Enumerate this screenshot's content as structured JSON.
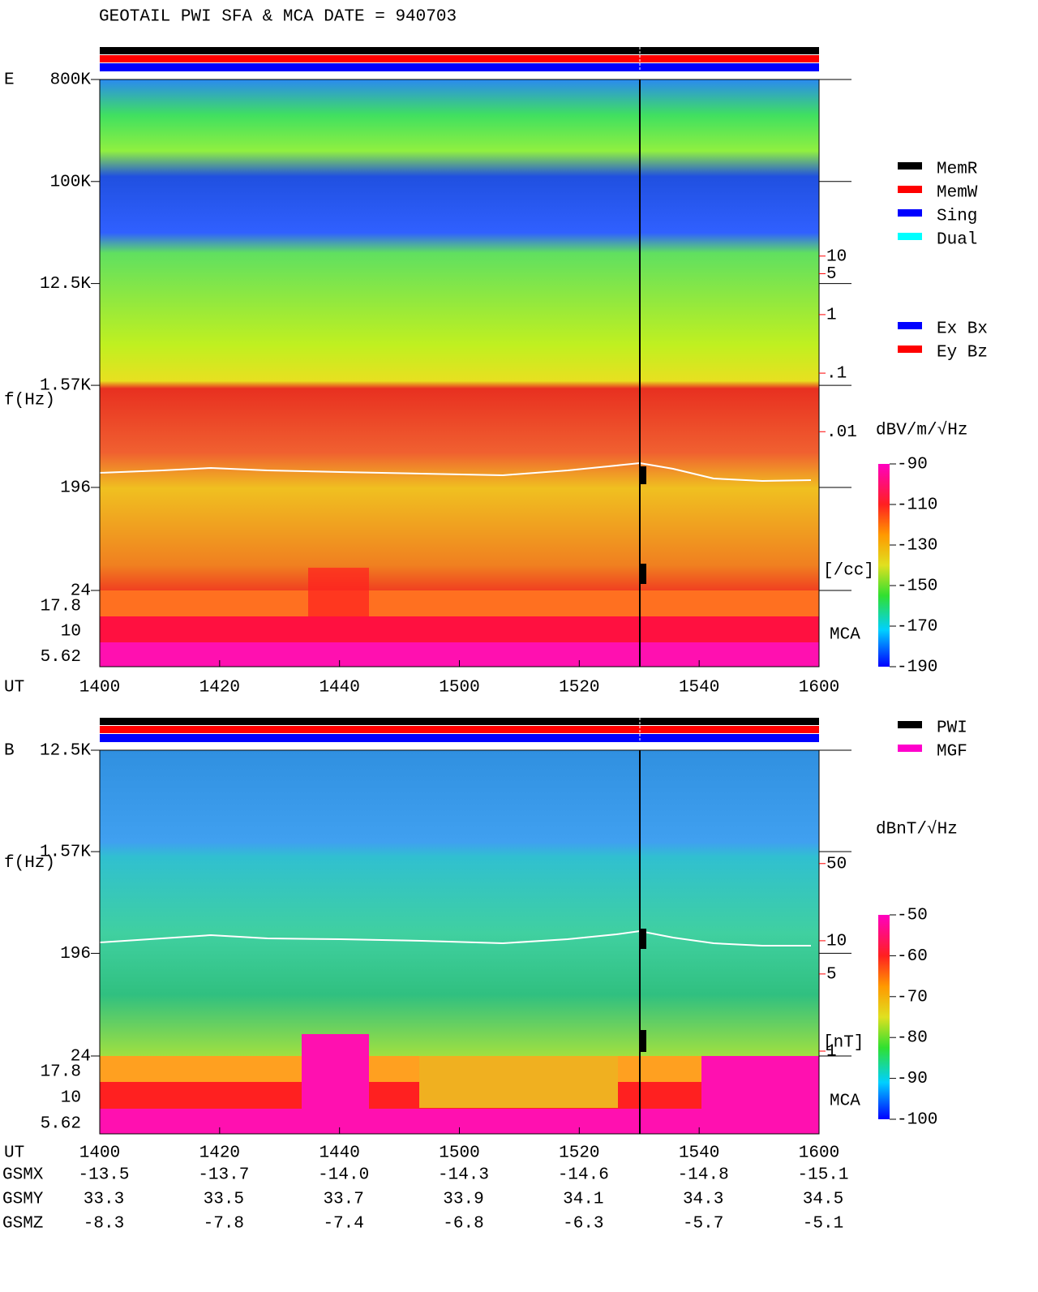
{
  "header": {
    "title": "GEOTAIL  PWI SFA & MCA   DATE = 940703"
  },
  "chart_data": [
    {
      "type": "spectrogram",
      "panel_label": "E",
      "ylabel": "f(Hz)",
      "xlabel": "UT",
      "log_y": true,
      "ylim": [
        24,
        800000
      ],
      "yticks": [
        {
          "value": 800000,
          "label": "800K"
        },
        {
          "value": 100000,
          "label": "100K"
        },
        {
          "value": 12500,
          "label": "12.5K"
        },
        {
          "value": 1570,
          "label": "1.57K"
        },
        196,
        24
      ],
      "mca_label": "MCA",
      "mca_channels": [
        17.8,
        10,
        5.62
      ],
      "categories": [
        "1400",
        "1420",
        "1440",
        "1500",
        "1520",
        "1540",
        "1600"
      ],
      "colorbar_label": "dBV/m/√Hz",
      "clim": [
        -190,
        -90
      ],
      "cticks": [
        -90,
        -110,
        -130,
        -150,
        -170,
        -190
      ],
      "y2lim": [
        0.003,
        20
      ],
      "y2ticks": [
        10,
        5,
        1,
        {
          "value": 0.1,
          "label": ".1"
        },
        {
          "value": 0.01,
          "label": ".01"
        }
      ],
      "y2label": "[/cc]",
      "y2color": "#ff0000",
      "legend": [
        {
          "name": "MemR",
          "color": "#000000"
        },
        {
          "name": "MemW",
          "color": "#ff0000"
        },
        {
          "name": "Sing",
          "color": "#0000ff"
        },
        {
          "name": "Dual",
          "color": "#00ffff"
        }
      ],
      "legend2": [
        {
          "name": "Ex Bx",
          "color": "#0000ff"
        },
        {
          "name": "Ey Bz",
          "color": "#ff0000"
        }
      ]
    },
    {
      "type": "spectrogram",
      "panel_label": "B",
      "ylabel": "f(Hz)",
      "xlabel": "UT",
      "log_y": true,
      "ylim": [
        24,
        12500
      ],
      "yticks": [
        {
          "value": 12500,
          "label": "12.5K"
        },
        {
          "value": 1570,
          "label": "1.57K"
        },
        196,
        24
      ],
      "mca_label": "MCA",
      "mca_channels": [
        17.8,
        10,
        5.62
      ],
      "categories": [
        "1400",
        "1420",
        "1440",
        "1500",
        "1520",
        "1540",
        "1600"
      ],
      "colorbar_label": "dBnT/√Hz",
      "clim": [
        -100,
        -50
      ],
      "cticks": [
        -50,
        -60,
        -70,
        -80,
        -90,
        -100
      ],
      "y2lim": [
        1,
        60
      ],
      "y2ticks": [
        50,
        10,
        5,
        1
      ],
      "y2label": "[nT]",
      "y2color": "#ff0000",
      "legend": [
        {
          "name": "PWI",
          "color": "#000000"
        },
        {
          "name": "MGF",
          "color": "#ff00cc"
        }
      ]
    }
  ],
  "orbit": {
    "rows": [
      {
        "name": "GSMX",
        "values": [
          "-13.5",
          "-13.7",
          "-14.0",
          "-14.3",
          "-14.6",
          "-14.8",
          "-15.1"
        ]
      },
      {
        "name": "GSMY",
        "values": [
          "33.3",
          "33.5",
          "33.7",
          "33.9",
          "34.1",
          "34.3",
          "34.5"
        ]
      },
      {
        "name": "GSMZ",
        "values": [
          "-8.3",
          "-7.8",
          "-7.4",
          "-6.8",
          "-6.3",
          "-5.7",
          "-5.1"
        ]
      }
    ]
  }
}
